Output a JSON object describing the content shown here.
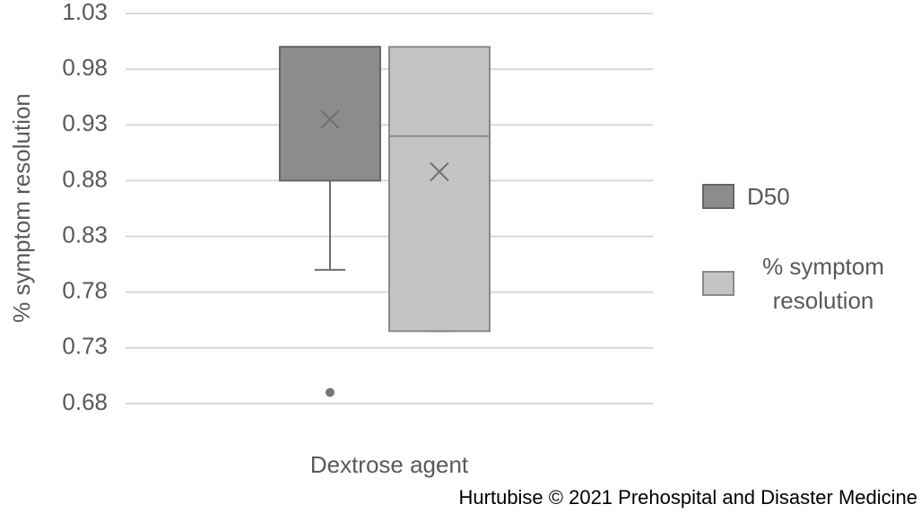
{
  "chart_data": {
    "type": "box",
    "y_label": "% symptom resolution",
    "categories": [
      "Dextrose agent"
    ],
    "ylim": [
      0.68,
      1.03
    ],
    "yticks": [
      0.68,
      0.73,
      0.78,
      0.83,
      0.88,
      0.93,
      0.98,
      1.03
    ],
    "grid": true,
    "legend": "right",
    "series": [
      {
        "name": "D50",
        "color": "#8c8c8c",
        "min": 0.8,
        "q1": 0.88,
        "median": 1.0,
        "q3": 1.0,
        "max": 1.0,
        "mean": 0.935,
        "outliers": [
          0.69
        ]
      },
      {
        "name": "% symptom resolution",
        "color": "#c4c4c4",
        "min": 0.745,
        "q1": 0.745,
        "median": 0.92,
        "q3": 1.0,
        "max": 1.0,
        "mean": 0.888,
        "outliers": []
      }
    ],
    "credit": "Hurtubise © 2021 Prehospital and Disaster Medicine"
  }
}
